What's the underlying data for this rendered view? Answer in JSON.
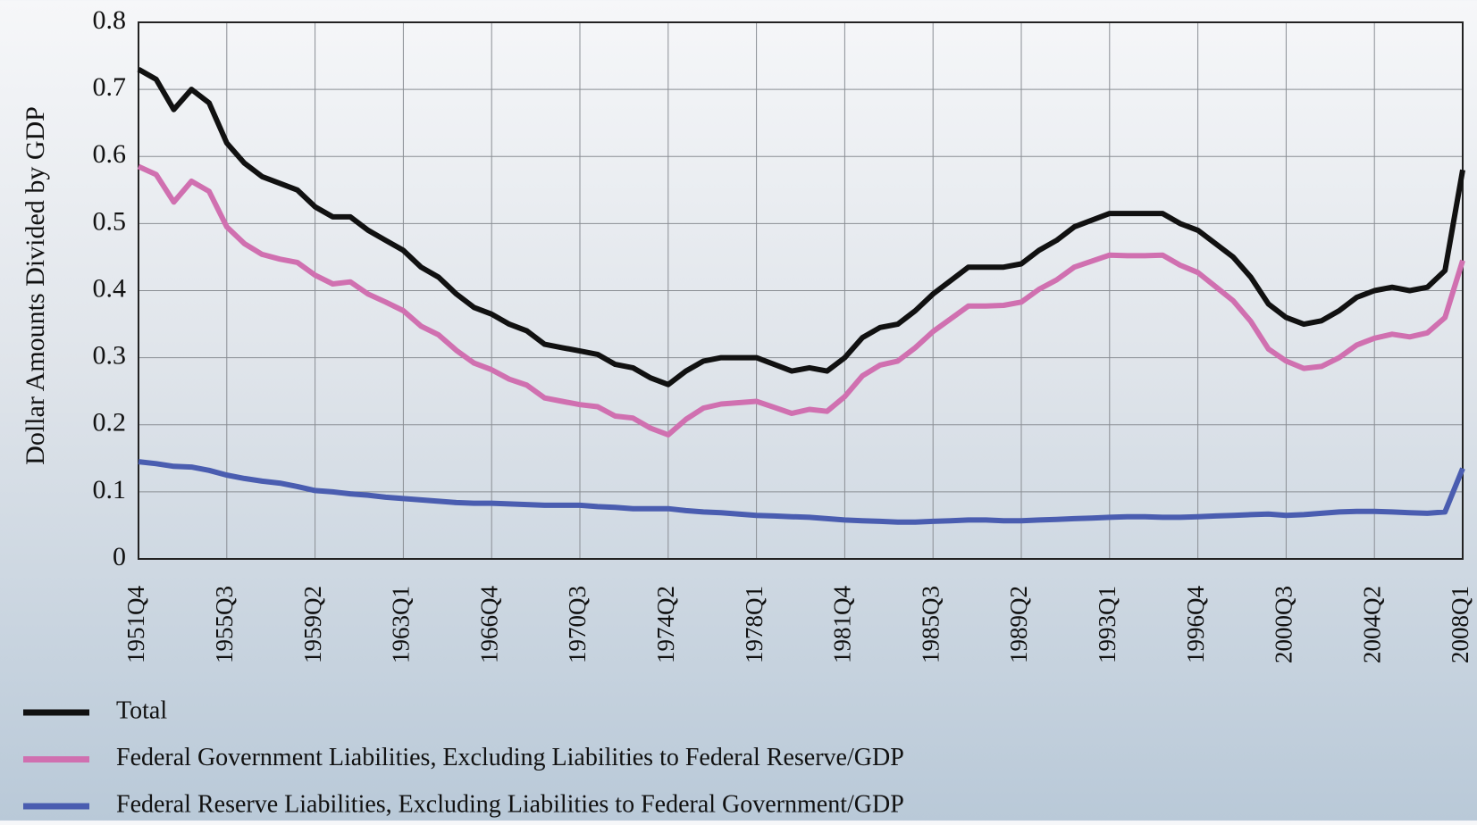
{
  "chart_data": {
    "type": "line",
    "y_label": "Dollar Amounts Divided by GDP",
    "categories": [
      "1951Q4",
      null,
      null,
      null,
      null,
      "1955Q3",
      null,
      null,
      null,
      null,
      "1959Q2",
      null,
      null,
      null,
      null,
      "1963Q1",
      null,
      null,
      null,
      null,
      "1966Q4",
      null,
      null,
      null,
      null,
      "1970Q3",
      null,
      null,
      null,
      null,
      "1974Q2",
      null,
      null,
      null,
      null,
      "1978Q1",
      null,
      null,
      null,
      null,
      "1981Q4",
      null,
      null,
      null,
      null,
      "1985Q3",
      null,
      null,
      null,
      null,
      "1989Q2",
      null,
      null,
      null,
      null,
      "1993Q1",
      null,
      null,
      null,
      null,
      "1996Q4",
      null,
      null,
      null,
      null,
      "2000Q3",
      null,
      null,
      null,
      null,
      "2004Q2",
      null,
      null,
      null,
      null,
      "2008Q1"
    ],
    "series": [
      {
        "name": "Total",
        "color": "#111111",
        "values": [
          0.73,
          0.715,
          0.67,
          0.7,
          0.68,
          0.62,
          0.59,
          0.57,
          0.56,
          0.55,
          0.525,
          0.51,
          0.51,
          0.49,
          0.475,
          0.46,
          0.435,
          0.42,
          0.395,
          0.375,
          0.365,
          0.35,
          0.34,
          0.32,
          0.315,
          0.31,
          0.305,
          0.29,
          0.285,
          0.27,
          0.26,
          0.28,
          0.295,
          0.3,
          0.3,
          0.3,
          0.29,
          0.28,
          0.285,
          0.28,
          0.3,
          0.33,
          0.345,
          0.35,
          0.37,
          0.395,
          0.415,
          0.435,
          0.435,
          0.435,
          0.44,
          0.46,
          0.475,
          0.495,
          0.505,
          0.515,
          0.515,
          0.515,
          0.515,
          0.5,
          0.49,
          0.47,
          0.45,
          0.42,
          0.38,
          0.36,
          0.35,
          0.355,
          0.37,
          0.39,
          0.4,
          0.405,
          0.4,
          0.405,
          0.43,
          0.58
        ]
      },
      {
        "name": "Federal Government Liabilities, Excluding Liabilities to Federal Reserve/GDP",
        "color": "#d070b0",
        "values": [
          0.585,
          0.573,
          0.532,
          0.563,
          0.548,
          0.495,
          0.47,
          0.454,
          0.447,
          0.442,
          0.423,
          0.41,
          0.413,
          0.395,
          0.383,
          0.37,
          0.347,
          0.334,
          0.311,
          0.292,
          0.282,
          0.268,
          0.259,
          0.24,
          0.235,
          0.23,
          0.227,
          0.213,
          0.21,
          0.195,
          0.185,
          0.208,
          0.225,
          0.231,
          0.233,
          0.235,
          0.226,
          0.217,
          0.223,
          0.22,
          0.242,
          0.273,
          0.289,
          0.295,
          0.315,
          0.339,
          0.358,
          0.377,
          0.377,
          0.378,
          0.383,
          0.402,
          0.416,
          0.435,
          0.444,
          0.453,
          0.452,
          0.452,
          0.453,
          0.438,
          0.427,
          0.406,
          0.385,
          0.354,
          0.313,
          0.295,
          0.284,
          0.287,
          0.3,
          0.319,
          0.329,
          0.335,
          0.331,
          0.337,
          0.36,
          0.445
        ]
      },
      {
        "name": "Federal Reserve Liabilities, Excluding Liabilities to Federal Government/GDP",
        "color": "#4a5db0",
        "values": [
          0.145,
          0.142,
          0.138,
          0.137,
          0.132,
          0.125,
          0.12,
          0.116,
          0.113,
          0.108,
          0.102,
          0.1,
          0.097,
          0.095,
          0.092,
          0.09,
          0.088,
          0.086,
          0.084,
          0.083,
          0.083,
          0.082,
          0.081,
          0.08,
          0.08,
          0.08,
          0.078,
          0.077,
          0.075,
          0.075,
          0.075,
          0.072,
          0.07,
          0.069,
          0.067,
          0.065,
          0.064,
          0.063,
          0.062,
          0.06,
          0.058,
          0.057,
          0.056,
          0.055,
          0.055,
          0.056,
          0.057,
          0.058,
          0.058,
          0.057,
          0.057,
          0.058,
          0.059,
          0.06,
          0.061,
          0.062,
          0.063,
          0.063,
          0.062,
          0.062,
          0.063,
          0.064,
          0.065,
          0.066,
          0.067,
          0.065,
          0.066,
          0.068,
          0.07,
          0.071,
          0.071,
          0.07,
          0.069,
          0.068,
          0.07,
          0.135
        ]
      }
    ],
    "ylim": [
      0,
      0.8
    ],
    "yticks": [
      0,
      0.1,
      0.2,
      0.3,
      0.4,
      0.5,
      0.6,
      0.7,
      0.8
    ],
    "grid": true,
    "legend": "bottom"
  }
}
